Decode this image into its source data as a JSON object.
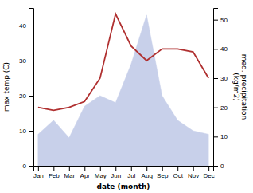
{
  "chart_data": {
    "type": "line",
    "categories": [
      "Jan",
      "Feb",
      "Mar",
      "Apr",
      "May",
      "Jun",
      "Jul",
      "Aug",
      "Sep",
      "Oct",
      "Nov",
      "Dec"
    ],
    "series": [
      {
        "type": "area",
        "color": "#c8d0ea",
        "values": [
          9,
          13,
          8,
          17,
          20,
          18,
          29,
          43,
          20,
          13,
          10,
          9
        ]
      },
      {
        "type": "line",
        "color": "#b03030",
        "axis": "y2",
        "values": [
          20,
          19,
          20,
          22,
          30,
          52,
          41,
          36,
          40,
          40,
          39,
          30
        ]
      }
    ],
    "x_label": "date (month)",
    "y_label": "max temp (C)",
    "y2_label": "med. precipitation\n(kg/m2)",
    "ylim": [
      0,
      45
    ],
    "yticks": [
      0,
      10,
      20,
      30,
      40
    ],
    "y2lim": [
      0,
      54
    ],
    "y2ticks": [
      0,
      10,
      20,
      30,
      40,
      50
    ],
    "grid": false
  }
}
